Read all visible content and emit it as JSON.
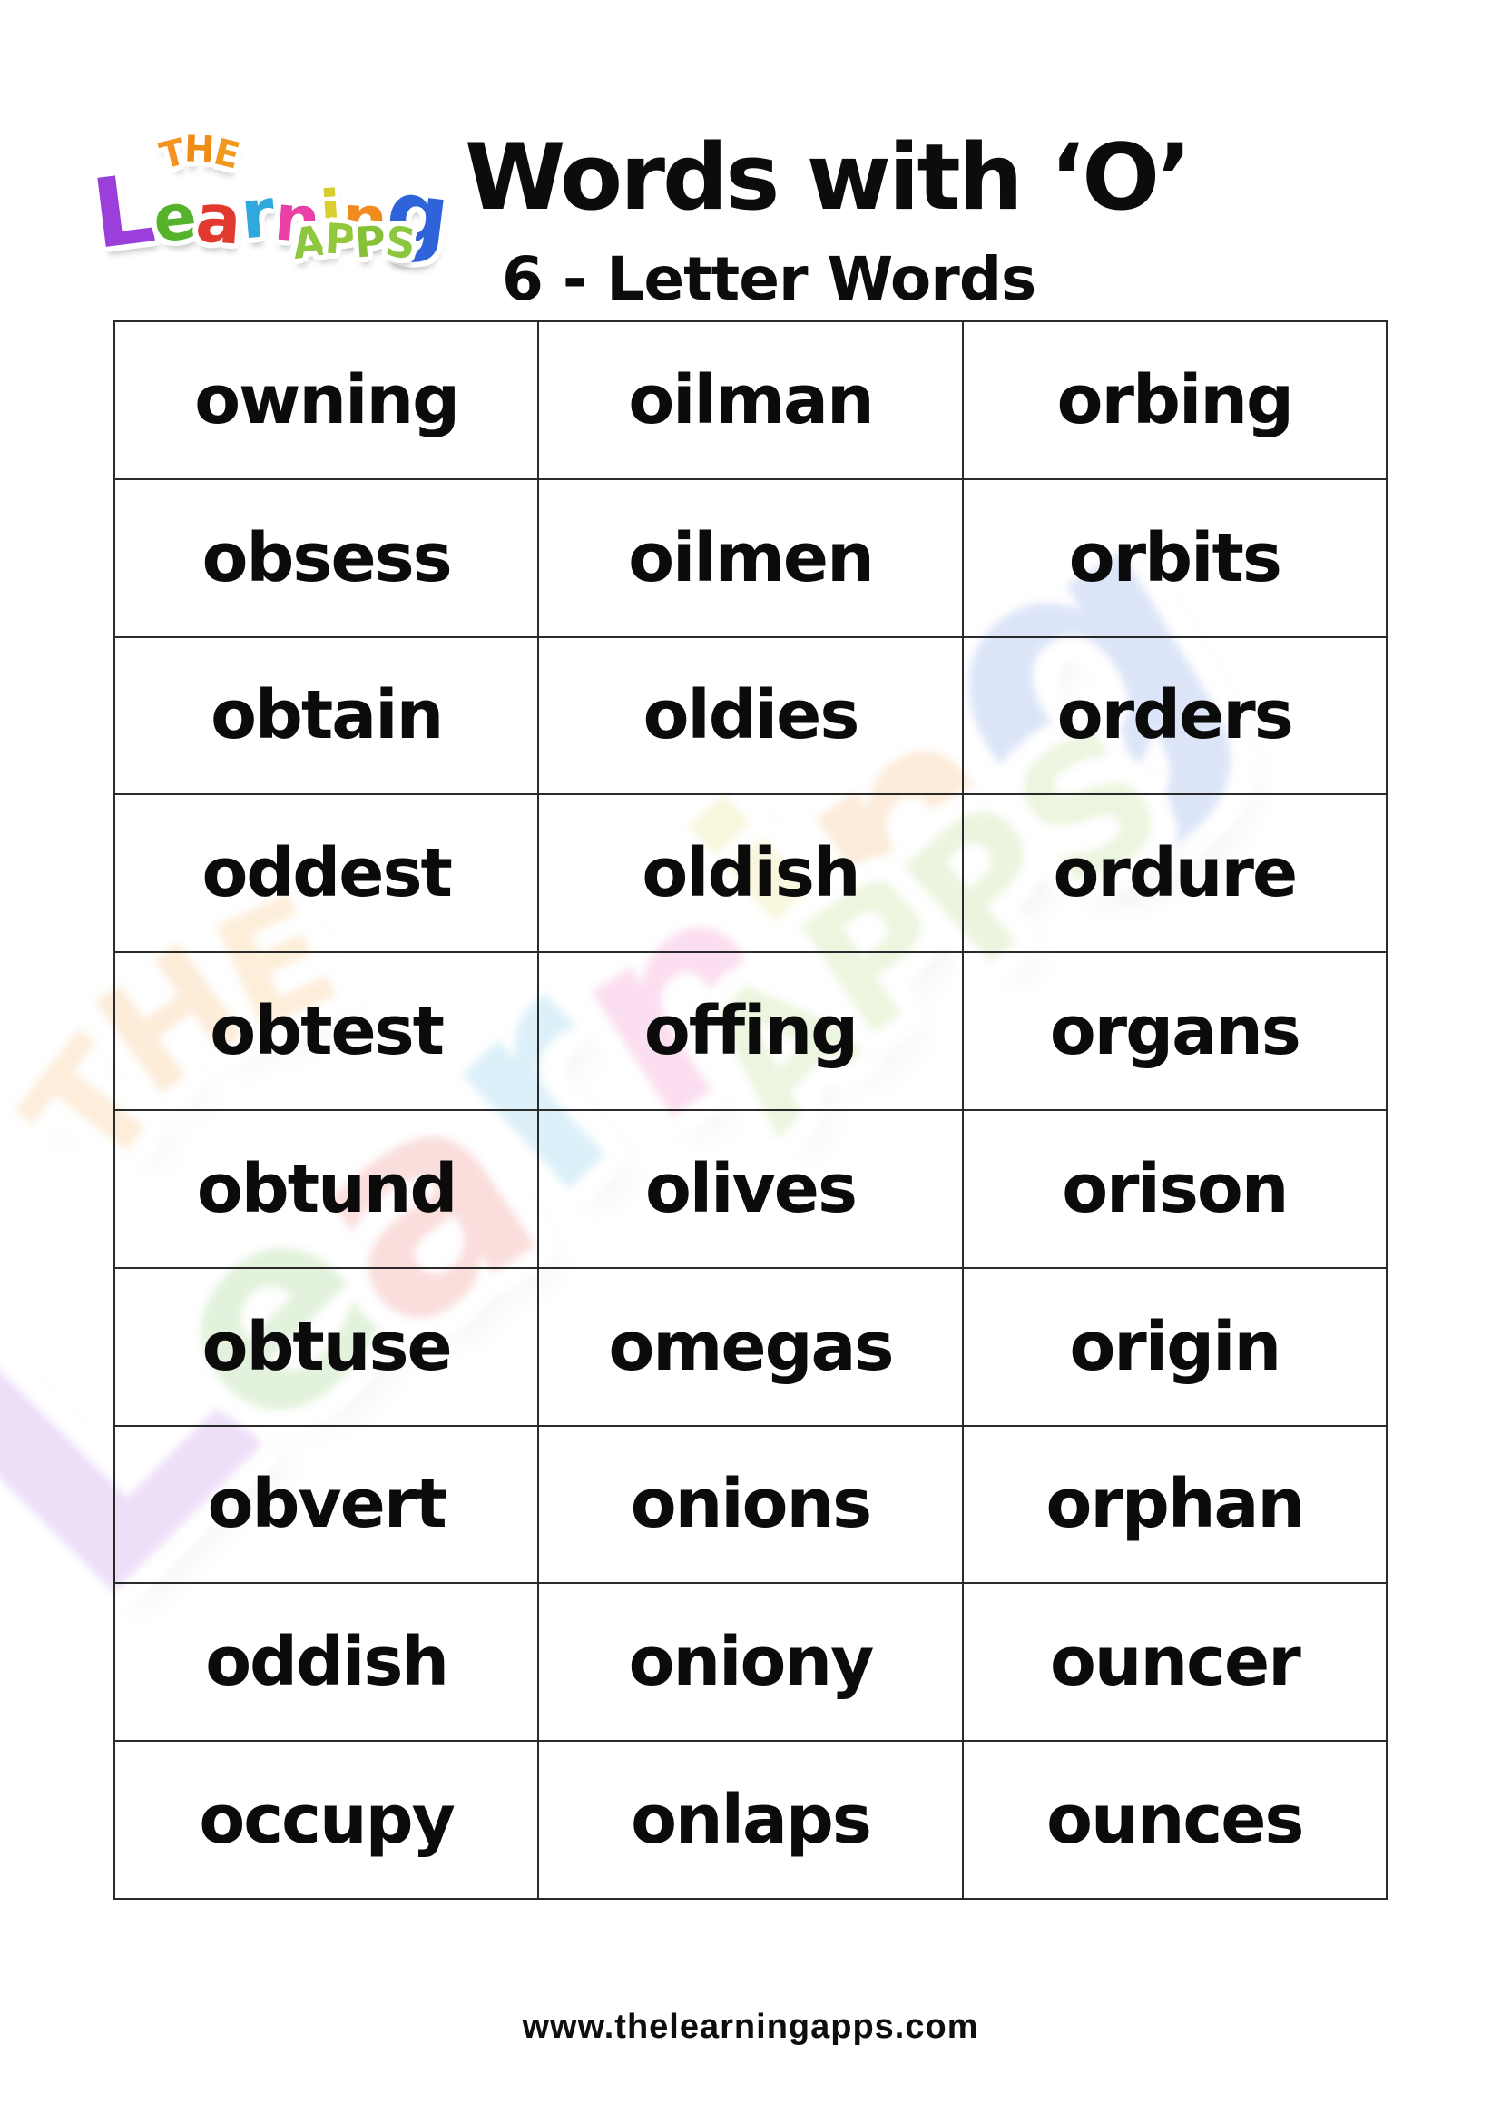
{
  "header": {
    "title": "Words with ‘O’",
    "subtitle": "6 - Letter Words"
  },
  "logo": {
    "the": [
      {
        "ch": "T",
        "color": "#f6921e",
        "rot": -14,
        "dy": 0.08
      },
      {
        "ch": "H",
        "color": "#ef8c15",
        "rot": 2,
        "dy": -0.05
      },
      {
        "ch": "E",
        "color": "#f29a1d",
        "rot": 14,
        "dy": 0.08
      }
    ],
    "learning": [
      {
        "ch": "L",
        "color": "#9a3fd9",
        "size": 1.5,
        "rot": -7,
        "dy": 0.05
      },
      {
        "ch": "e",
        "color": "#54b32b",
        "size": 1.0,
        "rot": -6,
        "dy": 0
      },
      {
        "ch": "a",
        "color": "#e2392e",
        "size": 1.05,
        "rot": 4,
        "dy": 0.04
      },
      {
        "ch": "r",
        "color": "#2fa8de",
        "size": 1.05,
        "rot": -5,
        "dy": -0.04
      },
      {
        "ch": "n",
        "color": "#ea3fa5",
        "size": 1.0,
        "rot": 5,
        "dy": 0.02
      },
      {
        "ch": "i",
        "color": "#d8ce2f",
        "size": 1.0,
        "rot": -4,
        "dy": -0.06
      },
      {
        "ch": "n",
        "color": "#ef8b1f",
        "size": 1.0,
        "rot": 4,
        "dy": 0.02
      },
      {
        "ch": "g",
        "color": "#2f63da",
        "size": 1.35,
        "rot": 7,
        "dy": 0.05
      }
    ],
    "apps": [
      {
        "ch": "A",
        "color": "#8dc63f",
        "rot": -8,
        "dy": 0.04
      },
      {
        "ch": "P",
        "color": "#93c83d",
        "rot": 4,
        "dy": -0.03
      },
      {
        "ch": "P",
        "color": "#86c137",
        "rot": -4,
        "dy": 0.03
      },
      {
        "ch": "S",
        "color": "#8dc63f",
        "rot": 8,
        "dy": 0.05
      }
    ]
  },
  "table": {
    "columns": 3,
    "rows": [
      [
        "owning",
        "oilman",
        "orbing"
      ],
      [
        "obsess",
        "oilmen",
        "orbits"
      ],
      [
        "obtain",
        "oldies",
        "orders"
      ],
      [
        "oddest",
        "oldish",
        "ordure"
      ],
      [
        "obtest",
        "offing",
        "organs"
      ],
      [
        "obtund",
        "olives",
        "orison"
      ],
      [
        "obtuse",
        "omegas",
        "origin"
      ],
      [
        "obvert",
        "onions",
        "orphan"
      ],
      [
        "oddish",
        "oniony",
        "ouncer"
      ],
      [
        "occupy",
        "onlaps",
        "ounces"
      ]
    ]
  },
  "footer": {
    "url": "www.thelearningapps.com"
  },
  "colors": {
    "word_text": "#0b0b0b",
    "table_border": "#2a2a2a",
    "title_text": "#0c0c0c"
  },
  "logo_sizes": {
    "the": 40,
    "learning": 70,
    "apps": 46
  }
}
